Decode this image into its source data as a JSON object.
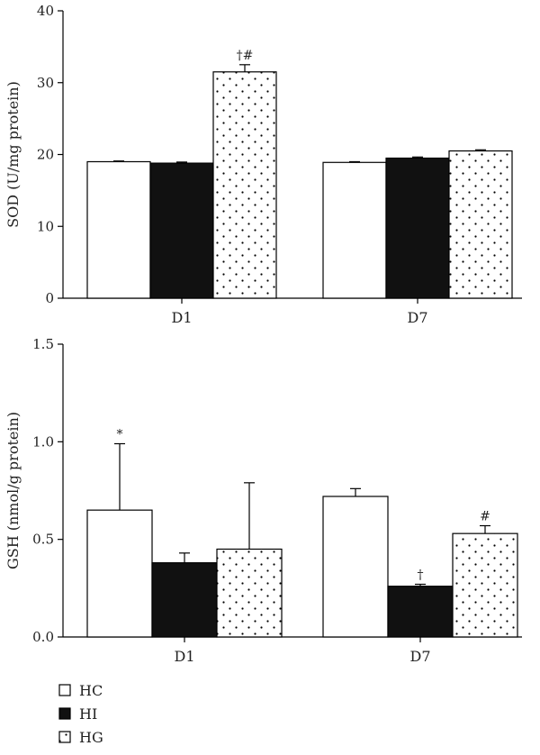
{
  "legend": [
    {
      "key": "HC",
      "label": "HC",
      "fill": "white"
    },
    {
      "key": "HI",
      "label": "HI",
      "fill": "black"
    },
    {
      "key": "HG",
      "label": "HG",
      "fill": "dots"
    }
  ],
  "chart_data": [
    {
      "type": "bar",
      "categories": [
        "D1",
        "D7"
      ],
      "ylabel": "SOD (U/mg protein)",
      "ylim": [
        0,
        40
      ],
      "yticks": [
        "0",
        "10",
        "20",
        "30",
        "40"
      ],
      "series": [
        {
          "name": "HC",
          "values": [
            19.0,
            18.9
          ],
          "errors": [
            0.1,
            0.1
          ],
          "annotations": [
            "",
            ""
          ]
        },
        {
          "name": "HI",
          "values": [
            18.8,
            19.5
          ],
          "errors": [
            0.15,
            0.15
          ],
          "annotations": [
            "",
            ""
          ]
        },
        {
          "name": "HG",
          "values": [
            31.5,
            20.5
          ],
          "errors": [
            1.0,
            0.15
          ],
          "annotations": [
            "†#",
            ""
          ]
        }
      ]
    },
    {
      "type": "bar",
      "categories": [
        "D1",
        "D7"
      ],
      "ylabel": "GSH (nmol/g protein)",
      "ylim": [
        0,
        1.5
      ],
      "yticks": [
        "0.0",
        "0.5",
        "1.0",
        "1.5"
      ],
      "series": [
        {
          "name": "HC",
          "values": [
            0.65,
            0.72
          ],
          "errors": [
            0.34,
            0.04
          ],
          "annotations": [
            "*",
            ""
          ]
        },
        {
          "name": "HI",
          "values": [
            0.38,
            0.26
          ],
          "errors": [
            0.05,
            0.01
          ],
          "annotations": [
            "",
            "†"
          ]
        },
        {
          "name": "HG",
          "values": [
            0.45,
            0.53
          ],
          "errors": [
            0.34,
            0.04
          ],
          "annotations": [
            "",
            "#"
          ]
        }
      ]
    }
  ]
}
